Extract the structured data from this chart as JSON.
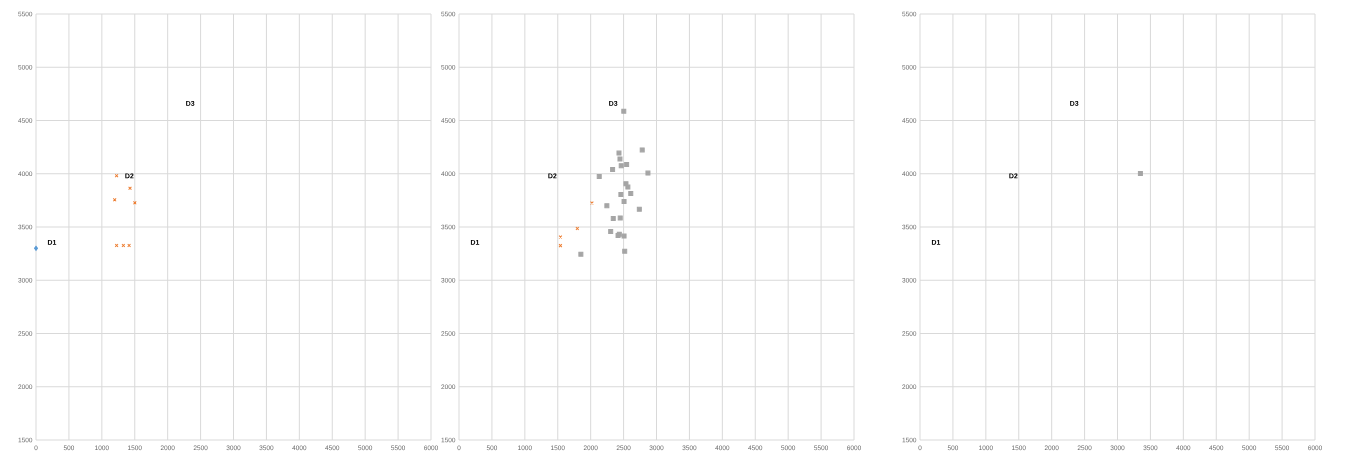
{
  "chart_data": [
    {
      "type": "scatter",
      "xlim": [
        0,
        6000
      ],
      "ylim": [
        1500,
        5500
      ],
      "xticks": [
        0,
        500,
        1000,
        1500,
        2000,
        2500,
        3000,
        3500,
        4000,
        4500,
        5000,
        5500,
        6000
      ],
      "yticks": [
        1500,
        2000,
        2500,
        3000,
        3500,
        4000,
        4500,
        5000,
        5500
      ],
      "grid": true,
      "annotations": [
        "D1",
        "D2",
        "D3"
      ],
      "series": [
        {
          "color": "#5b9bd5",
          "marker": "diamond",
          "x": [
            0
          ],
          "values": [
            3300
          ]
        },
        {
          "color": "#ed7d31",
          "marker": "cross",
          "x": [
            1224,
            1428,
            1195,
            1501,
            1224,
            1327,
            1414
          ],
          "values": [
            3982,
            3864,
            3755,
            3727,
            3327,
            3327,
            3327
          ]
        }
      ]
    },
    {
      "type": "scatter",
      "xlim": [
        0,
        6000
      ],
      "ylim": [
        1500,
        5500
      ],
      "xticks": [
        0,
        500,
        1000,
        1500,
        2000,
        2500,
        3000,
        3500,
        4000,
        4500,
        5000,
        5500,
        6000
      ],
      "yticks": [
        1500,
        2000,
        2500,
        3000,
        3500,
        4000,
        4500,
        5000,
        5500
      ],
      "grid": true,
      "annotations": [
        "D1",
        "D2",
        "D3"
      ],
      "series": [
        {
          "color": "#ed7d31",
          "marker": "cross",
          "x": [
            1541,
            1541,
            1797,
            2019
          ],
          "values": [
            3406,
            3325,
            3485,
            3725
          ]
        },
        {
          "color": "#a5a5a5",
          "marker": "square",
          "x": [
            2503,
            2783,
            2430,
            2445,
            2464,
            2546,
            2333,
            2870,
            2130,
            2536,
            2565,
            2459,
            2609,
            2507,
            2246,
            2739,
            2343,
            2449,
            2304,
            2416,
            2435,
            2507,
            1851,
            2517
          ],
          "values": [
            4588,
            4224,
            4194,
            4139,
            4076,
            4088,
            4039,
            4006,
            3975,
            3906,
            3875,
            3806,
            3815,
            3739,
            3700,
            3667,
            3579,
            3585,
            3457,
            3421,
            3433,
            3415,
            3245,
            3273
          ]
        }
      ]
    },
    {
      "type": "scatter",
      "xlim": [
        0,
        6000
      ],
      "ylim": [
        1500,
        5500
      ],
      "xticks": [
        0,
        500,
        1000,
        1500,
        2000,
        2500,
        3000,
        3500,
        4000,
        4500,
        5000,
        5500,
        6000
      ],
      "yticks": [
        1500,
        2000,
        2500,
        3000,
        3500,
        4000,
        4500,
        5000,
        5500
      ],
      "grid": true,
      "annotations": [
        "D1",
        "D2",
        "D3"
      ],
      "series": [
        {
          "color": "#a5a5a5",
          "marker": "square",
          "x": [
            3348
          ],
          "values": [
            4003
          ]
        }
      ]
    }
  ]
}
